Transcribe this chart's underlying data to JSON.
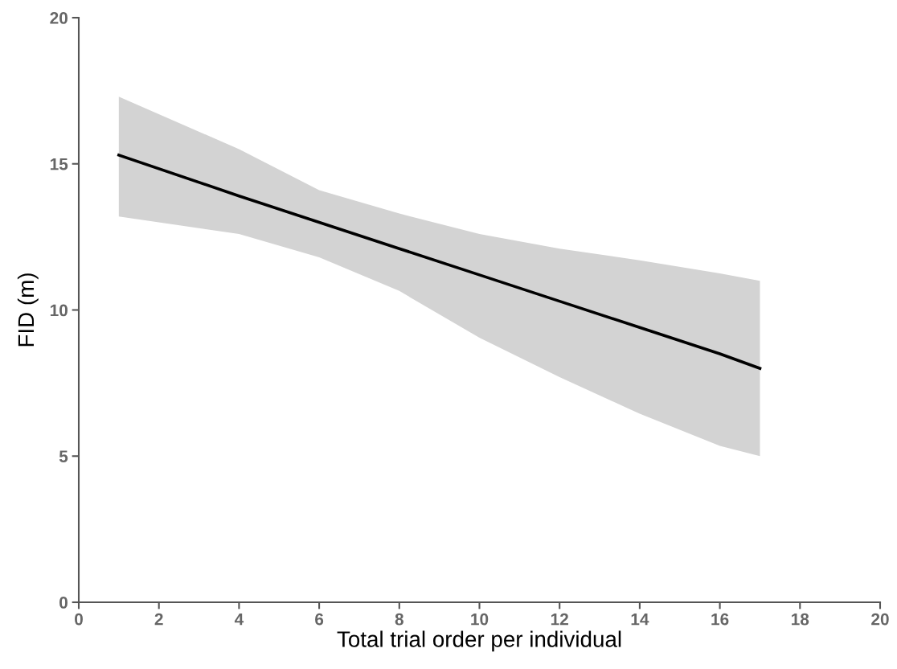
{
  "chart_data": {
    "type": "line",
    "xlabel": "Total trial order per individual",
    "ylabel": "FID (m)",
    "x": [
      1,
      4,
      6,
      8,
      10,
      12,
      14,
      16,
      17
    ],
    "series": [
      {
        "color": "#000000",
        "values": [
          15.3,
          13.9,
          13.0,
          12.1,
          11.2,
          10.3,
          9.4,
          8.5,
          8.0
        ],
        "lower": [
          13.2,
          12.6,
          11.8,
          10.65,
          9.05,
          7.7,
          6.45,
          5.35,
          5.0
        ],
        "upper": [
          17.3,
          15.5,
          14.1,
          13.3,
          12.6,
          12.1,
          11.7,
          11.25,
          11.0
        ]
      }
    ],
    "xlim": [
      0,
      20
    ],
    "ylim": [
      0,
      20
    ],
    "xticks": [
      0,
      2,
      4,
      6,
      8,
      10,
      12,
      14,
      16,
      18,
      20
    ],
    "yticks": [
      0,
      5,
      10,
      15,
      20
    ],
    "grid": false,
    "legend": false,
    "marker": "none",
    "line_style": "solid"
  }
}
